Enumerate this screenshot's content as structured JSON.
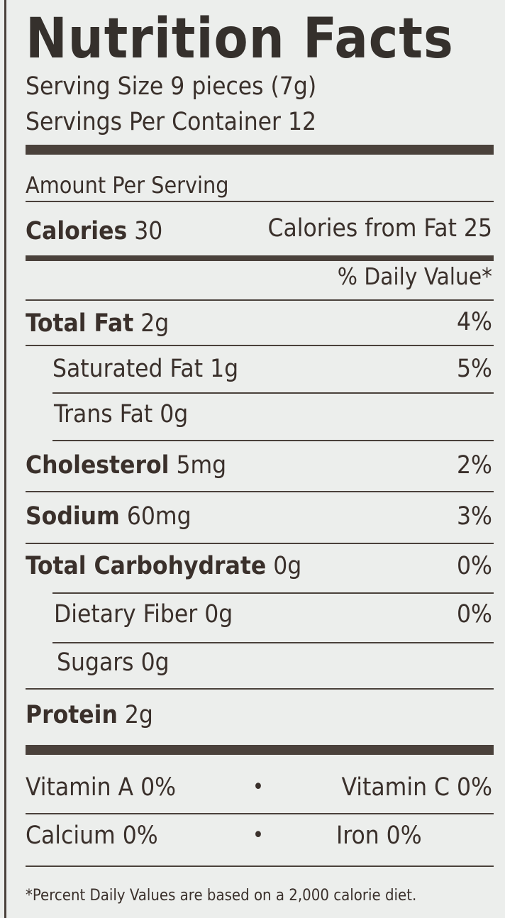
{
  "title": "Nutrition Facts",
  "serving_size": "Serving Size 9 pieces (7g)",
  "servings_per_container": "Servings Per Container 12",
  "amount_per_serving": "Amount Per Serving",
  "calories": {
    "label": "Calories",
    "value": "30",
    "from_fat": "Calories from Fat 25"
  },
  "daily_value_header": "% Daily Value*",
  "rows": [
    {
      "label": "Total Fat",
      "amount": "2g",
      "dv": "4%"
    },
    {
      "label": "Saturated Fat",
      "amount": "1g",
      "dv": "5%"
    },
    {
      "label": "Trans Fat",
      "amount": "0g",
      "dv": ""
    },
    {
      "label": "Cholesterol",
      "amount": "5mg",
      "dv": "2%"
    },
    {
      "label": "Sodium",
      "amount": "60mg",
      "dv": "3%"
    },
    {
      "label": "Total Carbohydrate",
      "amount": "0g",
      "dv": "0%"
    },
    {
      "label": "Dietary Fiber",
      "amount": "0g",
      "dv": "0%"
    },
    {
      "label": "Sugars",
      "amount": "0g",
      "dv": ""
    },
    {
      "label": "Protein",
      "amount": "2g",
      "dv": ""
    }
  ],
  "vitamins": [
    {
      "left": "Vitamin A 0%",
      "right": "Vitamin C 0%"
    },
    {
      "left": "Calcium 0%",
      "right": "Iron 0%"
    }
  ],
  "separator": "•",
  "footnote": "*Percent Daily Values are based on a 2,000 calorie diet."
}
